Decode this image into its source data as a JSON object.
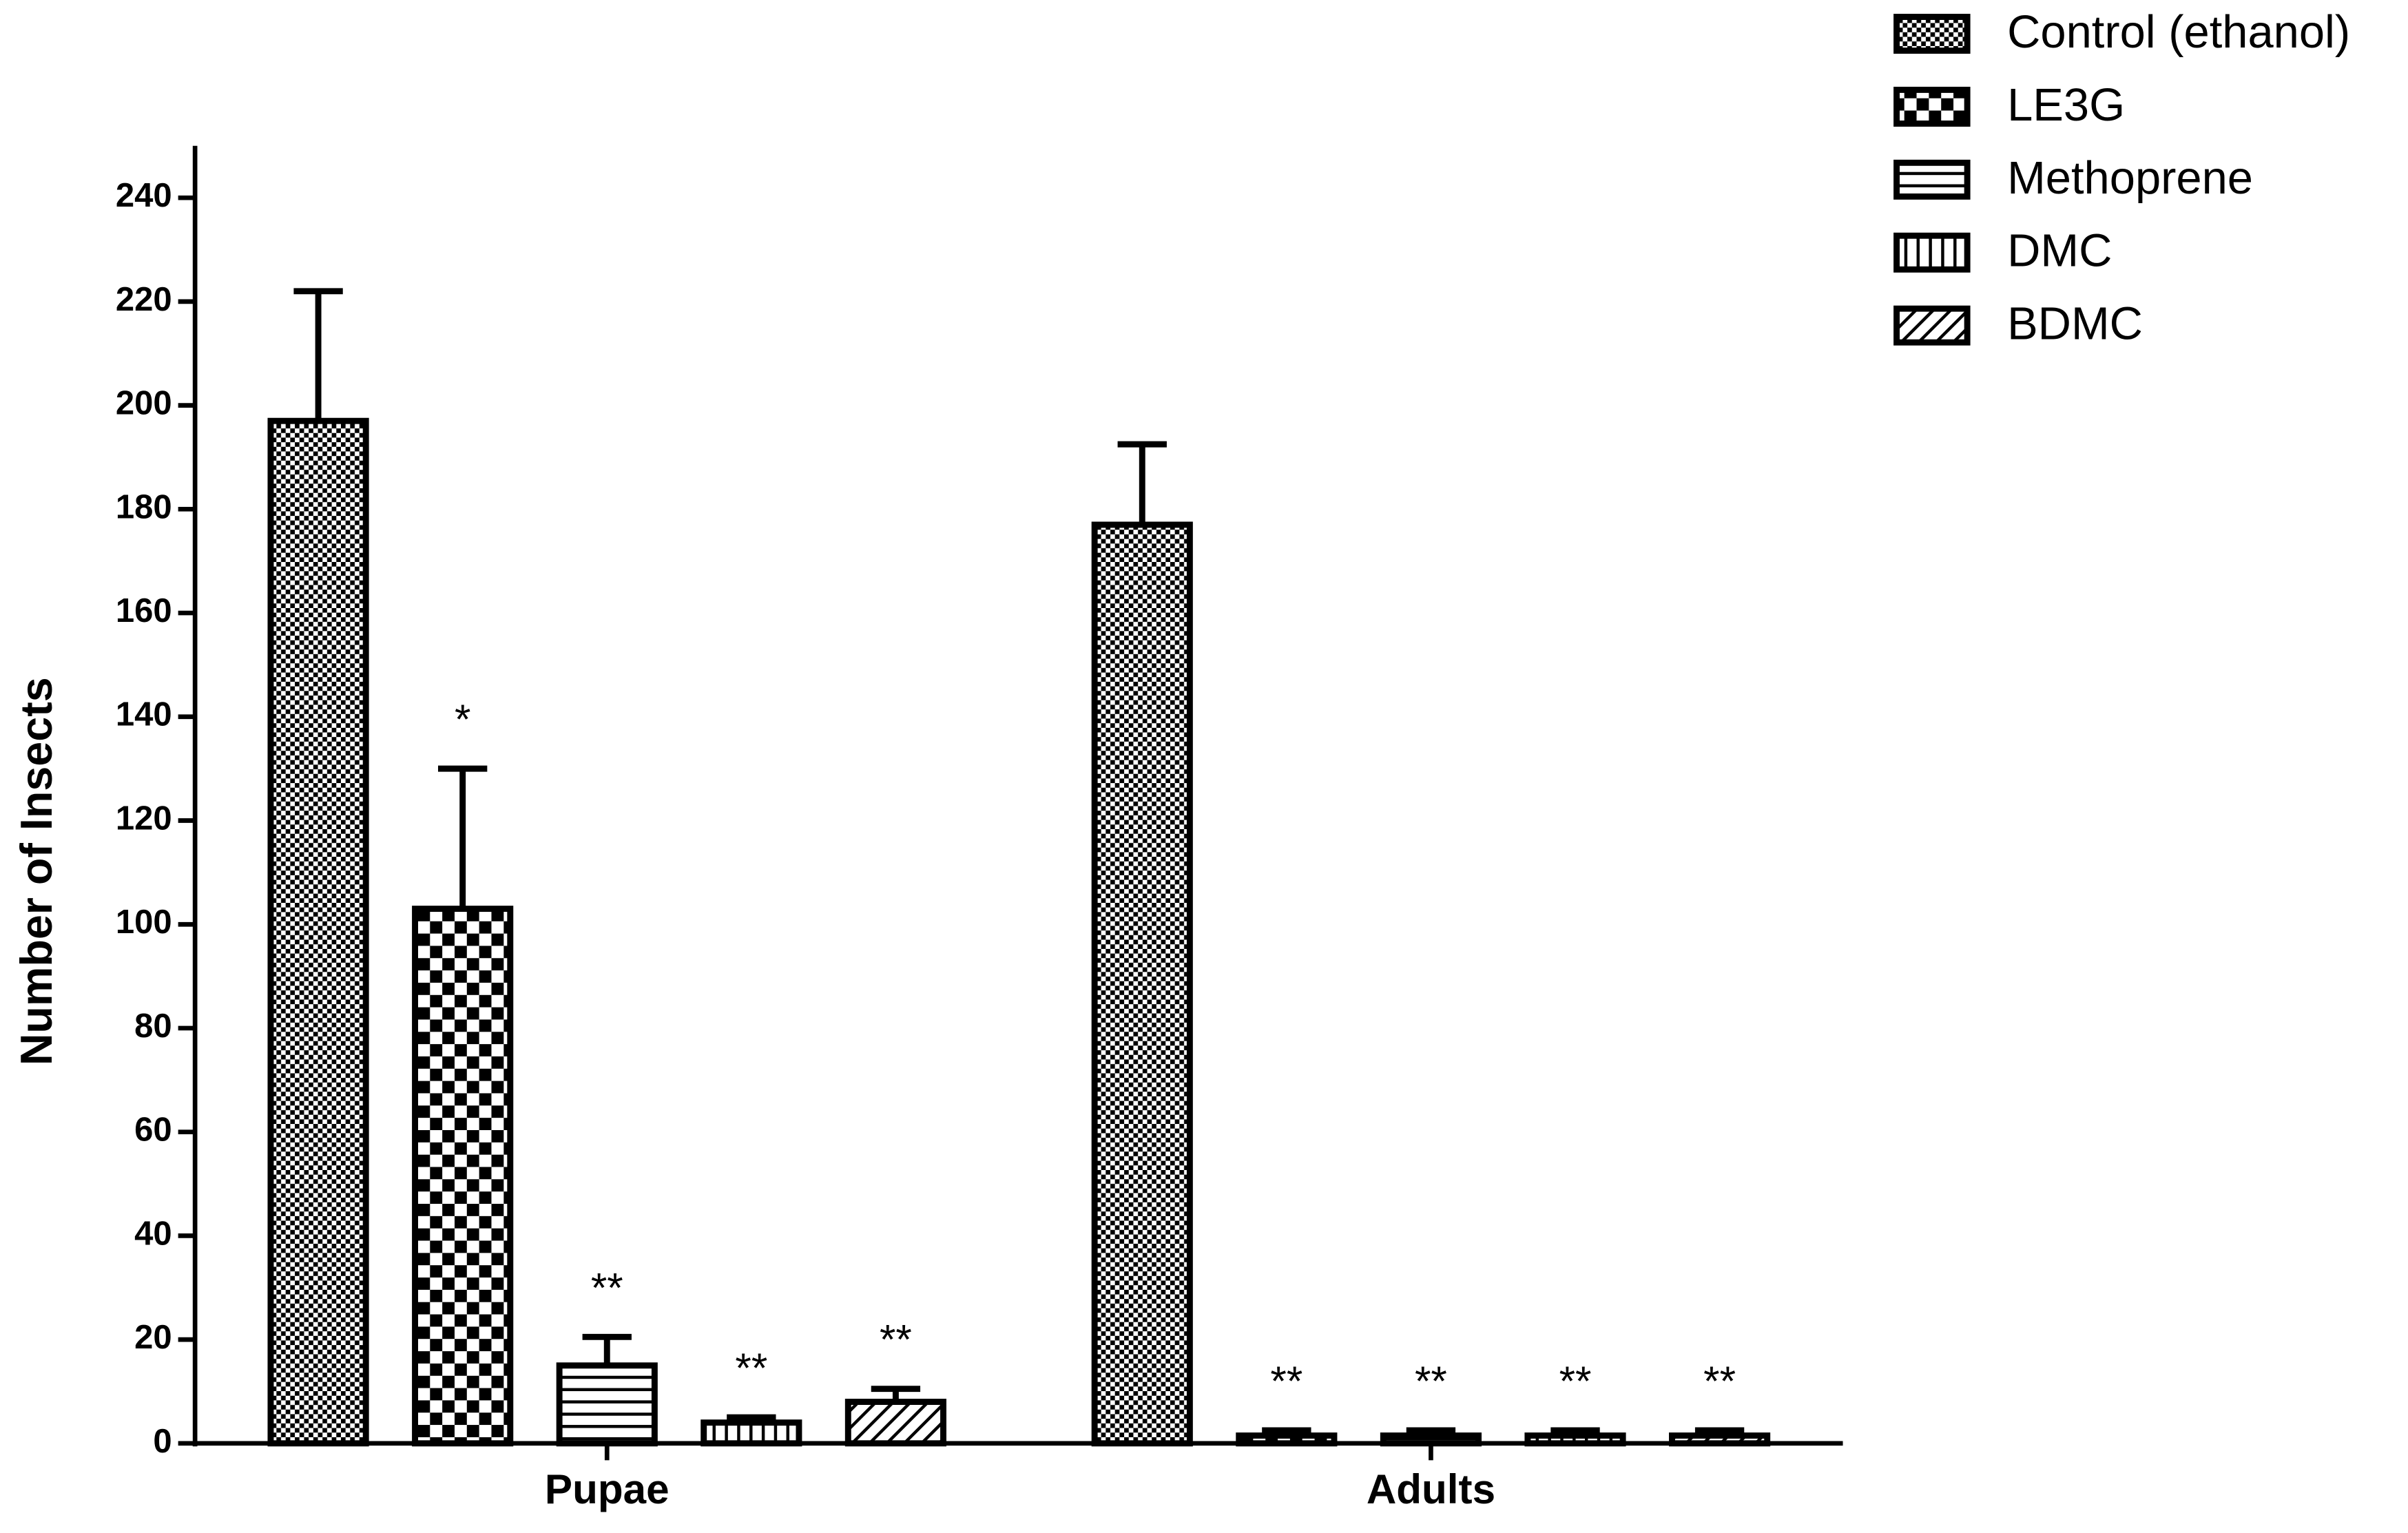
{
  "chart_data": {
    "type": "bar",
    "ylabel": "Number of Insects",
    "categories": [
      "Pupae",
      "Adults"
    ],
    "ylim": [
      0,
      250
    ],
    "yticks": [
      0,
      20,
      40,
      60,
      80,
      100,
      120,
      140,
      160,
      180,
      200,
      220,
      240
    ],
    "series": [
      {
        "name": "Control (ethanol)",
        "color": "#000000",
        "pattern": "fine-check",
        "values": [
          197,
          177
        ],
        "errors": [
          25,
          15.5
        ],
        "annotations": [
          null,
          null
        ]
      },
      {
        "name": "LE3G",
        "color": "#000000",
        "pattern": "coarse-check",
        "values": [
          103,
          1.5
        ],
        "errors": [
          27,
          1
        ],
        "annotations": [
          "*",
          "**"
        ]
      },
      {
        "name": "Methoprene",
        "color": "#000000",
        "pattern": "horizontal",
        "values": [
          15,
          1.5
        ],
        "errors": [
          5.5,
          1
        ],
        "annotations": [
          "**",
          "**"
        ]
      },
      {
        "name": "DMC",
        "color": "#000000",
        "pattern": "vertical",
        "values": [
          4,
          1.5
        ],
        "errors": [
          1,
          1
        ],
        "annotations": [
          "**",
          "**"
        ]
      },
      {
        "name": "BDMC",
        "color": "#000000",
        "pattern": "diagonal",
        "values": [
          8,
          1.5
        ],
        "errors": [
          2.5,
          1
        ],
        "annotations": [
          "**",
          "**"
        ]
      }
    ],
    "legend": "top-right"
  }
}
